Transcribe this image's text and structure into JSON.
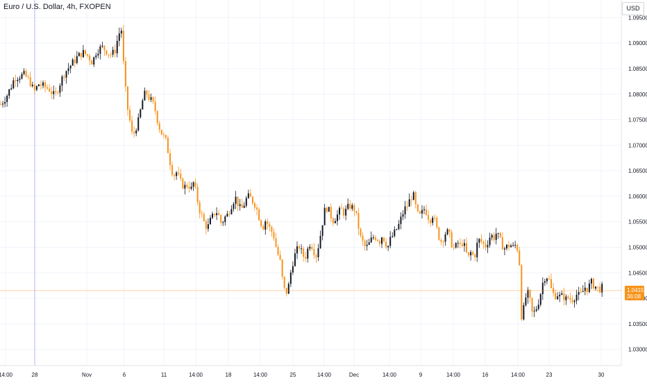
{
  "header": {
    "symbol_title": "Euro / U.S. Dollar, 4h, FXOPEN",
    "currency": "USD"
  },
  "price_marker": {
    "price": "1.04152",
    "countdown": "36:08"
  },
  "colors": {
    "up": "#131722",
    "down": "#f7931a",
    "grid": "#f0f3fa",
    "axis_text": "#131722",
    "price_line": "#f7931a",
    "vertical_marker": "#c5cbfa"
  },
  "chart_data": {
    "type": "candlestick",
    "timeframe": "4h",
    "ylim": [
      1.0275,
      1.0975
    ],
    "grid": true,
    "y_ticks": [
      "1.09500",
      "1.09000",
      "1.08500",
      "1.08000",
      "1.07500",
      "1.07000",
      "1.06500",
      "1.06000",
      "1.05500",
      "1.05000",
      "1.04500",
      "1.04000",
      "1.03500",
      "1.03000"
    ],
    "x_ticks": [
      "14:00",
      "28",
      "Nov",
      "6",
      "11",
      "14:00",
      "18",
      "14:00",
      "25",
      "14:00",
      "Dec",
      "14:00",
      "9",
      "14:00",
      "16",
      "14:00",
      "23",
      "30"
    ],
    "current_price": 1.04152,
    "highlight_date": "28",
    "close_path": [
      [
        0,
        1.078
      ],
      [
        8,
        1.0795
      ],
      [
        15,
        1.0815
      ],
      [
        20,
        1.0832
      ],
      [
        26,
        1.0835
      ],
      [
        34,
        1.0838
      ],
      [
        42,
        1.0825
      ],
      [
        48,
        1.0805
      ],
      [
        55,
        1.082
      ],
      [
        62,
        1.0815
      ],
      [
        70,
        1.081
      ],
      [
        78,
        1.0795
      ],
      [
        85,
        1.082
      ],
      [
        92,
        1.0842
      ],
      [
        98,
        1.0852
      ],
      [
        104,
        1.0862
      ],
      [
        110,
        1.0872
      ],
      [
        118,
        1.0882
      ],
      [
        126,
        1.0875
      ],
      [
        132,
        1.0862
      ],
      [
        138,
        1.0885
      ],
      [
        146,
        1.0892
      ],
      [
        152,
        1.0885
      ],
      [
        158,
        1.0878
      ],
      [
        164,
        1.0882
      ],
      [
        170,
        1.0918
      ],
      [
        174,
        1.0926
      ],
      [
        178,
        1.0835
      ],
      [
        182,
        1.0778
      ],
      [
        186,
        1.0748
      ],
      [
        190,
        1.0715
      ],
      [
        194,
        1.0732
      ],
      [
        198,
        1.0745
      ],
      [
        202,
        1.0772
      ],
      [
        206,
        1.0798
      ],
      [
        210,
        1.0802
      ],
      [
        214,
        1.0792
      ],
      [
        218,
        1.0785
      ],
      [
        222,
        1.0772
      ],
      [
        226,
        1.0748
      ],
      [
        230,
        1.0728
      ],
      [
        234,
        1.0718
      ],
      [
        238,
        1.0708
      ],
      [
        242,
        1.0682
      ],
      [
        246,
        1.0652
      ],
      [
        250,
        1.0642
      ],
      [
        254,
        1.0648
      ],
      [
        258,
        1.063
      ],
      [
        262,
        1.0622
      ],
      [
        266,
        1.0618
      ],
      [
        270,
        1.0625
      ],
      [
        274,
        1.0612
      ],
      [
        278,
        1.0628
      ],
      [
        282,
        1.0602
      ],
      [
        286,
        1.0575
      ],
      [
        290,
        1.056
      ],
      [
        294,
        1.0545
      ],
      [
        298,
        1.0538
      ],
      [
        302,
        1.0552
      ],
      [
        306,
        1.0562
      ],
      [
        310,
        1.0572
      ],
      [
        314,
        1.0562
      ],
      [
        318,
        1.0545
      ],
      [
        322,
        1.0558
      ],
      [
        326,
        1.0562
      ],
      [
        330,
        1.0575
      ],
      [
        334,
        1.0588
      ],
      [
        338,
        1.0598
      ],
      [
        342,
        1.0585
      ],
      [
        346,
        1.0572
      ],
      [
        350,
        1.0582
      ],
      [
        354,
        1.0595
      ],
      [
        358,
        1.06
      ],
      [
        362,
        1.0592
      ],
      [
        366,
        1.0585
      ],
      [
        370,
        1.057
      ],
      [
        374,
        1.055
      ],
      [
        378,
        1.054
      ],
      [
        382,
        1.0555
      ],
      [
        386,
        1.054
      ],
      [
        390,
        1.0532
      ],
      [
        394,
        1.052
      ],
      [
        398,
        1.049
      ],
      [
        402,
        1.0478
      ],
      [
        406,
        1.0435
      ],
      [
        410,
        1.0408
      ],
      [
        414,
        1.0418
      ],
      [
        418,
        1.0452
      ],
      [
        422,
        1.0478
      ],
      [
        426,
        1.0492
      ],
      [
        430,
        1.0502
      ],
      [
        434,
        1.0488
      ],
      [
        438,
        1.0478
      ],
      [
        442,
        1.0495
      ],
      [
        446,
        1.051
      ],
      [
        450,
        1.0498
      ],
      [
        454,
        1.0482
      ],
      [
        458,
        1.0505
      ],
      [
        462,
        1.0535
      ],
      [
        466,
        1.057
      ],
      [
        470,
        1.0578
      ],
      [
        474,
        1.0568
      ],
      [
        478,
        1.0552
      ],
      [
        482,
        1.0558
      ],
      [
        486,
        1.0565
      ],
      [
        490,
        1.0575
      ],
      [
        494,
        1.0568
      ],
      [
        498,
        1.0572
      ],
      [
        502,
        1.0582
      ],
      [
        506,
        1.0578
      ],
      [
        510,
        1.0575
      ],
      [
        514,
        1.055
      ],
      [
        518,
        1.052
      ],
      [
        522,
        1.0508
      ],
      [
        526,
        1.0498
      ],
      [
        530,
        1.0505
      ],
      [
        534,
        1.0515
      ],
      [
        538,
        1.0522
      ],
      [
        542,
        1.0518
      ],
      [
        546,
        1.0512
      ],
      [
        550,
        1.0525
      ],
      [
        554,
        1.0508
      ],
      [
        558,
        1.0502
      ],
      [
        562,
        1.0518
      ],
      [
        566,
        1.0525
      ],
      [
        570,
        1.0535
      ],
      [
        574,
        1.0545
      ],
      [
        578,
        1.0562
      ],
      [
        582,
        1.0575
      ],
      [
        586,
        1.0582
      ],
      [
        590,
        1.0595
      ],
      [
        594,
        1.0605
      ],
      [
        598,
        1.0578
      ],
      [
        602,
        1.0558
      ],
      [
        606,
        1.0565
      ],
      [
        610,
        1.0575
      ],
      [
        614,
        1.0568
      ],
      [
        618,
        1.0552
      ],
      [
        622,
        1.0565
      ],
      [
        626,
        1.0548
      ],
      [
        630,
        1.0525
      ],
      [
        634,
        1.0512
      ],
      [
        638,
        1.052
      ],
      [
        642,
        1.0532
      ],
      [
        646,
        1.0525
      ],
      [
        650,
        1.0505
      ],
      [
        654,
        1.0495
      ],
      [
        658,
        1.051
      ],
      [
        662,
        1.0502
      ],
      [
        666,
        1.0512
      ],
      [
        670,
        1.049
      ],
      [
        674,
        1.048
      ],
      [
        678,
        1.0492
      ],
      [
        682,
        1.0478
      ],
      [
        686,
        1.0505
      ],
      [
        690,
        1.0515
      ],
      [
        694,
        1.0508
      ],
      [
        698,
        1.0502
      ],
      [
        702,
        1.0512
      ],
      [
        706,
        1.0525
      ],
      [
        710,
        1.0518
      ],
      [
        714,
        1.0528
      ],
      [
        718,
        1.0518
      ],
      [
        722,
        1.0505
      ],
      [
        726,
        1.0498
      ],
      [
        730,
        1.0502
      ],
      [
        734,
        1.0505
      ],
      [
        738,
        1.05
      ],
      [
        742,
        1.0505
      ],
      [
        746,
        1.0492
      ],
      [
        748,
        1.0455
      ],
      [
        750,
        1.0365
      ],
      [
        754,
        1.0382
      ],
      [
        758,
        1.0415
      ],
      [
        762,
        1.0398
      ],
      [
        766,
        1.0368
      ],
      [
        770,
        1.0375
      ],
      [
        774,
        1.039
      ],
      [
        778,
        1.0412
      ],
      [
        782,
        1.0438
      ],
      [
        786,
        1.0445
      ],
      [
        790,
        1.0435
      ],
      [
        794,
        1.0412
      ],
      [
        798,
        1.0405
      ],
      [
        802,
        1.0408
      ],
      [
        806,
        1.0402
      ],
      [
        810,
        1.0405
      ],
      [
        814,
        1.0398
      ],
      [
        818,
        1.0402
      ],
      [
        822,
        1.0396
      ],
      [
        826,
        1.0402
      ],
      [
        830,
        1.0408
      ],
      [
        834,
        1.0404
      ],
      [
        838,
        1.0412
      ],
      [
        842,
        1.0422
      ],
      [
        846,
        1.0418
      ],
      [
        850,
        1.0432
      ],
      [
        854,
        1.0426
      ],
      [
        858,
        1.0422
      ],
      [
        862,
        1.0418
      ],
      [
        866,
        1.0421
      ],
      [
        868,
        1.04152
      ]
    ]
  }
}
